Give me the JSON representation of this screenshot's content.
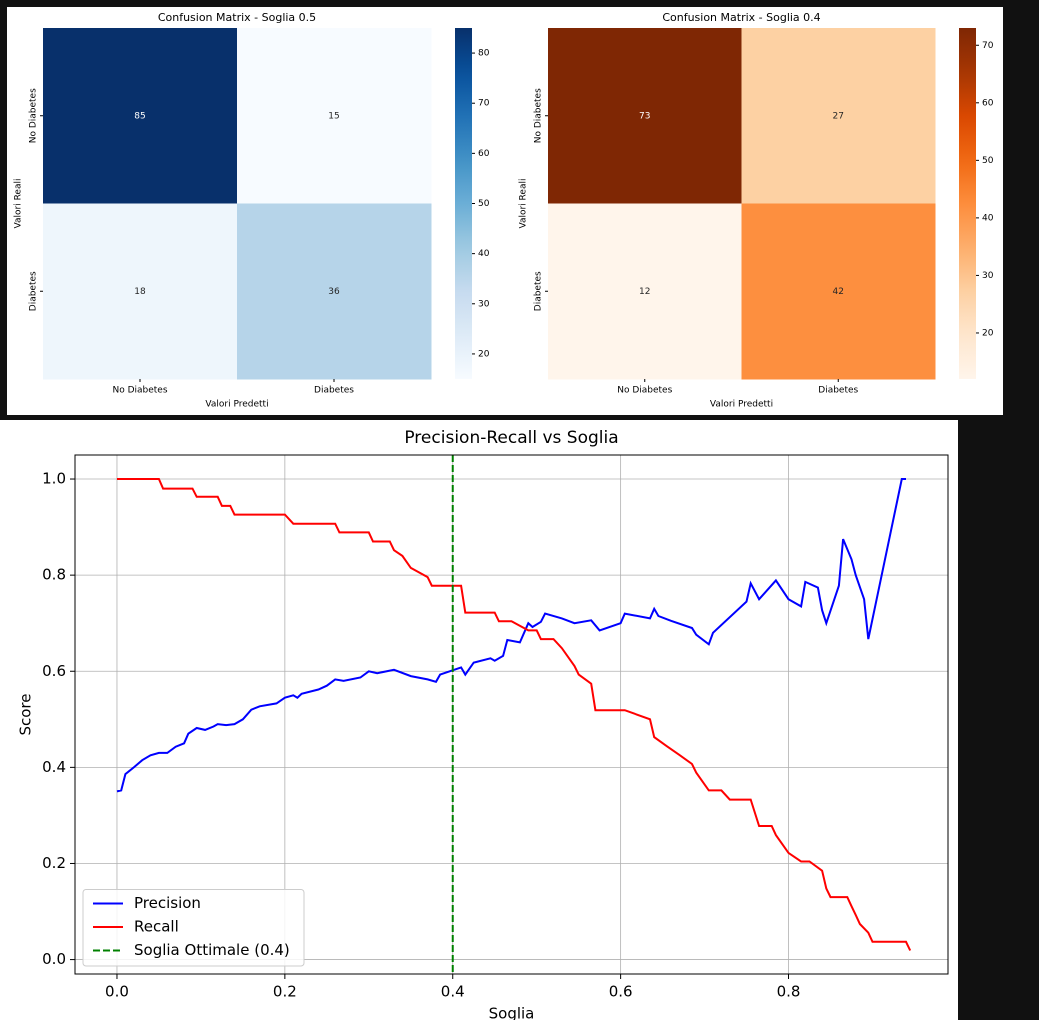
{
  "chart_data": [
    {
      "type": "heatmap",
      "title": "Confusion Matrix - Soglia 0.5",
      "x_label": "Valori Predetti",
      "y_label": "Valori Reali",
      "columns": [
        "No Diabetes",
        "Diabetes"
      ],
      "rows": [
        "No Diabetes",
        "Diabetes"
      ],
      "values": [
        [
          85,
          15
        ],
        [
          18,
          36
        ]
      ],
      "colormap": "Blues",
      "clim": [
        15,
        85
      ],
      "cticks": [
        20,
        30,
        40,
        50,
        60,
        70,
        80
      ]
    },
    {
      "type": "heatmap",
      "title": "Confusion Matrix - Soglia 0.4",
      "x_label": "Valori Predetti",
      "y_label": "Valori Reali",
      "columns": [
        "No Diabetes",
        "Diabetes"
      ],
      "rows": [
        "No Diabetes",
        "Diabetes"
      ],
      "values": [
        [
          73,
          27
        ],
        [
          12,
          42
        ]
      ],
      "colormap": "Oranges",
      "clim": [
        12,
        73
      ],
      "cticks": [
        20,
        30,
        40,
        50,
        60,
        70
      ]
    },
    {
      "type": "line",
      "title": "Precision-Recall vs Soglia",
      "x_label": "Soglia",
      "y_label": "Score",
      "xlim": [
        -0.05,
        0.99
      ],
      "ylim": [
        -0.03,
        1.05
      ],
      "xticks": [
        {
          "value": 0,
          "label": "0.0"
        },
        {
          "value": 0.2,
          "label": "0.2"
        },
        {
          "value": 0.4,
          "label": "0.4"
        },
        {
          "value": 0.6,
          "label": "0.6"
        },
        {
          "value": 0.8,
          "label": "0.8"
        }
      ],
      "yticks": [
        {
          "value": 0,
          "label": "0.0"
        },
        {
          "value": 0.2,
          "label": "0.2"
        },
        {
          "value": 0.4,
          "label": "0.4"
        },
        {
          "value": 0.6,
          "label": "0.6"
        },
        {
          "value": 0.8,
          "label": "0.8"
        },
        {
          "value": 1,
          "label": "1.0"
        }
      ],
      "grid": true,
      "legend": "lower left",
      "series": [
        {
          "name": "Precision",
          "color": "#0000ff",
          "x": [
            0,
            0.005,
            0.01,
            0.02,
            0.03,
            0.04,
            0.05,
            0.06,
            0.07,
            0.08,
            0.085,
            0.095,
            0.105,
            0.115,
            0.12,
            0.13,
            0.14,
            0.15,
            0.16,
            0.17,
            0.19,
            0.2,
            0.21,
            0.215,
            0.22,
            0.24,
            0.25,
            0.26,
            0.27,
            0.29,
            0.3,
            0.31,
            0.33,
            0.35,
            0.37,
            0.38,
            0.385,
            0.41,
            0.415,
            0.425,
            0.445,
            0.45,
            0.46,
            0.465,
            0.48,
            0.49,
            0.495,
            0.505,
            0.51,
            0.53,
            0.545,
            0.565,
            0.575,
            0.6,
            0.605,
            0.635,
            0.64,
            0.645,
            0.66,
            0.685,
            0.69,
            0.705,
            0.71,
            0.75,
            0.755,
            0.765,
            0.785,
            0.8,
            0.815,
            0.82,
            0.835,
            0.84,
            0.845,
            0.86,
            0.865,
            0.875,
            0.88,
            0.89,
            0.895,
            0.935,
            0.94
          ],
          "values": [
            0.35,
            0.352,
            0.386,
            0.4,
            0.415,
            0.425,
            0.43,
            0.43,
            0.443,
            0.45,
            0.47,
            0.482,
            0.478,
            0.485,
            0.49,
            0.488,
            0.49,
            0.5,
            0.52,
            0.527,
            0.533,
            0.545,
            0.55,
            0.545,
            0.553,
            0.562,
            0.57,
            0.583,
            0.58,
            0.587,
            0.6,
            0.596,
            0.603,
            0.59,
            0.583,
            0.578,
            0.593,
            0.608,
            0.593,
            0.618,
            0.627,
            0.622,
            0.632,
            0.665,
            0.66,
            0.7,
            0.692,
            0.703,
            0.72,
            0.71,
            0.7,
            0.706,
            0.685,
            0.7,
            0.72,
            0.71,
            0.73,
            0.715,
            0.705,
            0.69,
            0.676,
            0.656,
            0.68,
            0.745,
            0.783,
            0.75,
            0.789,
            0.75,
            0.735,
            0.786,
            0.774,
            0.727,
            0.7,
            0.778,
            0.875,
            0.833,
            0.8,
            0.75,
            0.667,
            1.0,
            1.0
          ]
        },
        {
          "name": "Recall",
          "color": "#ff0000",
          "x": [
            0,
            0.05,
            0.055,
            0.09,
            0.095,
            0.12,
            0.125,
            0.135,
            0.14,
            0.2,
            0.21,
            0.26,
            0.265,
            0.3,
            0.305,
            0.325,
            0.33,
            0.34,
            0.35,
            0.37,
            0.375,
            0.41,
            0.415,
            0.45,
            0.455,
            0.47,
            0.49,
            0.5,
            0.505,
            0.52,
            0.53,
            0.545,
            0.55,
            0.565,
            0.57,
            0.605,
            0.635,
            0.64,
            0.655,
            0.67,
            0.685,
            0.69,
            0.705,
            0.72,
            0.73,
            0.755,
            0.765,
            0.78,
            0.785,
            0.8,
            0.815,
            0.825,
            0.84,
            0.845,
            0.85,
            0.87,
            0.875,
            0.88,
            0.885,
            0.895,
            0.9,
            0.94,
            0.945
          ],
          "values": [
            1.0,
            1.0,
            0.98,
            0.98,
            0.963,
            0.963,
            0.944,
            0.944,
            0.926,
            0.926,
            0.907,
            0.907,
            0.889,
            0.889,
            0.87,
            0.87,
            0.852,
            0.84,
            0.815,
            0.796,
            0.778,
            0.778,
            0.722,
            0.722,
            0.704,
            0.704,
            0.685,
            0.685,
            0.667,
            0.667,
            0.648,
            0.611,
            0.593,
            0.574,
            0.519,
            0.519,
            0.5,
            0.463,
            0.444,
            0.426,
            0.407,
            0.389,
            0.352,
            0.352,
            0.333,
            0.333,
            0.278,
            0.278,
            0.259,
            0.222,
            0.204,
            0.204,
            0.185,
            0.148,
            0.13,
            0.13,
            0.111,
            0.093,
            0.074,
            0.056,
            0.037,
            0.037,
            0.019
          ]
        }
      ],
      "vlines": [
        {
          "name": "Soglia Ottimale (0.4)",
          "color": "#008000",
          "x": 0.4
        }
      ]
    }
  ]
}
